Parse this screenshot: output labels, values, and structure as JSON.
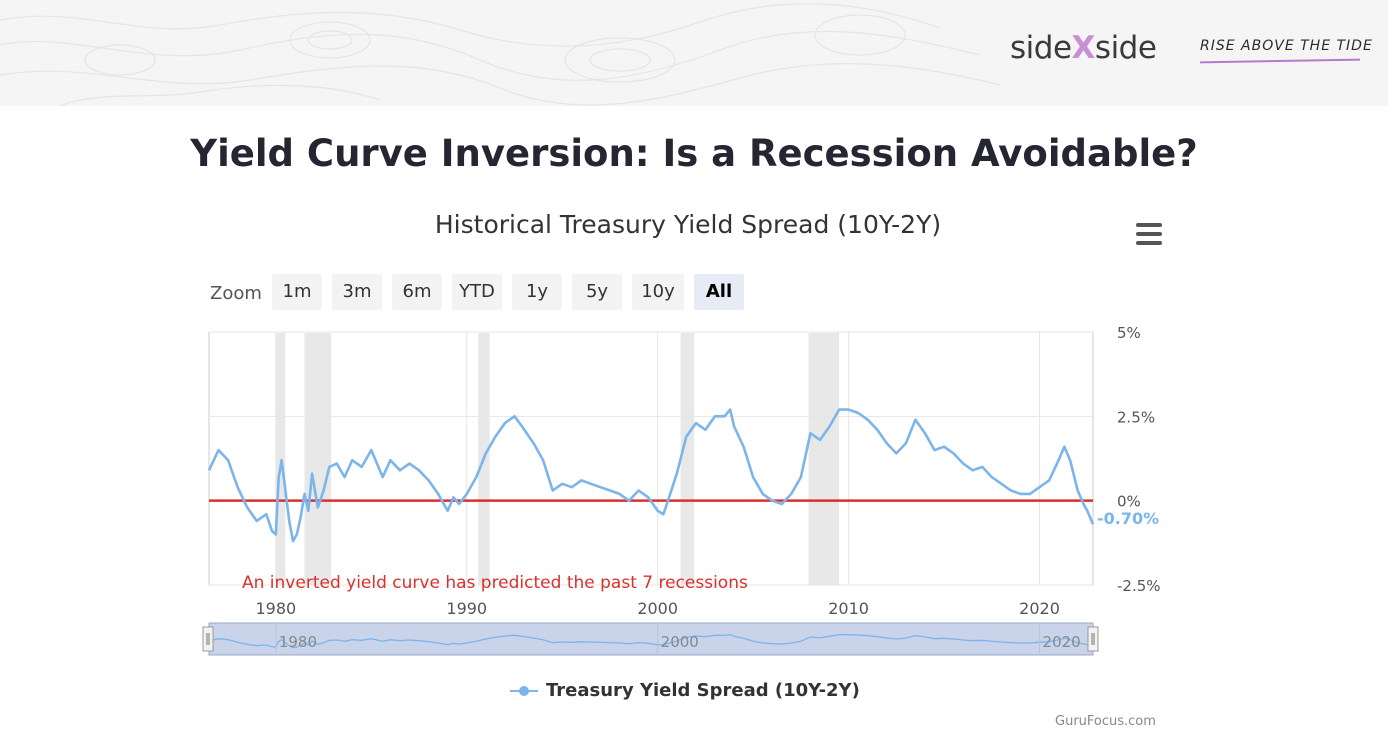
{
  "brand": {
    "left": "side",
    "x": "X",
    "right": "side",
    "tagline": "RISE ABOVE THE TIDE"
  },
  "headline": "Yield Curve Inversion: Is a Recession Avoidable?",
  "chart_title": "Historical Treasury Yield Spread (10Y-2Y)",
  "zoom": {
    "label": "Zoom",
    "buttons": [
      "1m",
      "3m",
      "6m",
      "YTD",
      "1y",
      "5y",
      "10y",
      "All"
    ],
    "active": "All"
  },
  "legend": "Treasury Yield Spread (10Y-2Y)",
  "credit": "GuruFocus.com",
  "colors": {
    "series": "#7cb5ec",
    "zero_line": "#d9302c",
    "annotation": "#d9302c",
    "recession_band": "#e8e8e8",
    "navigator": "#c9d3ea"
  },
  "chart_data": {
    "type": "line",
    "title": "Historical Treasury Yield Spread (10Y-2Y)",
    "xlabel": "",
    "ylabel": "",
    "x_ticks": [
      1980,
      1990,
      2000,
      2010,
      2020
    ],
    "y_ticks": [
      "5%",
      "2.5%",
      "0%",
      "-2.5%"
    ],
    "y_tick_values": [
      5,
      2.5,
      0,
      -2.5
    ],
    "xlim": [
      1976.5,
      2022.8
    ],
    "ylim": [
      -2.5,
      5
    ],
    "last_value_label": "-0.70%",
    "annotation": "An inverted yield curve has predicted the past 7 recessions",
    "navigator_ticks": [
      "1980",
      "2000",
      "2020"
    ],
    "recessions": [
      [
        1980.0,
        1980.5
      ],
      [
        1981.5,
        1982.9
      ],
      [
        1990.6,
        1991.2
      ],
      [
        2001.2,
        2001.9
      ],
      [
        2007.9,
        2009.5
      ]
    ],
    "series": [
      {
        "name": "Treasury Yield Spread (10Y-2Y)",
        "x": [
          1976.5,
          1977.0,
          1977.5,
          1978.0,
          1978.5,
          1979.0,
          1979.5,
          1979.8,
          1980.0,
          1980.15,
          1980.3,
          1980.5,
          1980.7,
          1980.9,
          1981.1,
          1981.3,
          1981.5,
          1981.7,
          1981.9,
          1982.2,
          1982.5,
          1982.8,
          1983.2,
          1983.6,
          1984.0,
          1984.5,
          1985.0,
          1985.3,
          1985.6,
          1986.0,
          1986.5,
          1987.0,
          1987.5,
          1988.0,
          1988.5,
          1989.0,
          1989.3,
          1989.6,
          1990.0,
          1990.5,
          1991.0,
          1991.5,
          1992.0,
          1992.5,
          1992.9,
          1993.5,
          1994.0,
          1994.5,
          1995.0,
          1995.5,
          1996.0,
          1996.5,
          1997.0,
          1997.5,
          1998.0,
          1998.5,
          1999.0,
          1999.5,
          2000.0,
          2000.3,
          2000.6,
          2001.0,
          2001.5,
          2002.0,
          2002.5,
          2003.0,
          2003.5,
          2003.8,
          2004.0,
          2004.5,
          2005.0,
          2005.5,
          2006.0,
          2006.5,
          2007.0,
          2007.5,
          2008.0,
          2008.5,
          2009.0,
          2009.5,
          2010.0,
          2010.5,
          2011.0,
          2011.5,
          2012.0,
          2012.5,
          2013.0,
          2013.5,
          2014.0,
          2014.5,
          2015.0,
          2015.5,
          2016.0,
          2016.5,
          2017.0,
          2017.5,
          2018.0,
          2018.5,
          2019.0,
          2019.5,
          2020.0,
          2020.5,
          2021.0,
          2021.3,
          2021.6,
          2022.0,
          2022.3,
          2022.5,
          2022.8
        ],
        "values": [
          0.9,
          1.5,
          1.2,
          0.4,
          -0.2,
          -0.6,
          -0.4,
          -0.9,
          -1.0,
          0.7,
          1.2,
          0.3,
          -0.6,
          -1.2,
          -1.0,
          -0.5,
          0.2,
          -0.3,
          0.8,
          -0.2,
          0.3,
          1.0,
          1.1,
          0.7,
          1.2,
          1.0,
          1.5,
          1.1,
          0.7,
          1.2,
          0.9,
          1.1,
          0.9,
          0.6,
          0.2,
          -0.3,
          0.1,
          -0.1,
          0.2,
          0.7,
          1.4,
          1.9,
          2.3,
          2.5,
          2.2,
          1.7,
          1.2,
          0.3,
          0.5,
          0.4,
          0.6,
          0.5,
          0.4,
          0.3,
          0.2,
          0.0,
          0.3,
          0.1,
          -0.3,
          -0.4,
          0.1,
          0.8,
          1.9,
          2.3,
          2.1,
          2.5,
          2.5,
          2.7,
          2.2,
          1.6,
          0.7,
          0.2,
          0.0,
          -0.1,
          0.2,
          0.7,
          2.0,
          1.8,
          2.2,
          2.7,
          2.7,
          2.6,
          2.4,
          2.1,
          1.7,
          1.4,
          1.7,
          2.4,
          2.0,
          1.5,
          1.6,
          1.4,
          1.1,
          0.9,
          1.0,
          0.7,
          0.5,
          0.3,
          0.2,
          0.2,
          0.4,
          0.6,
          1.2,
          1.6,
          1.2,
          0.3,
          -0.1,
          -0.3,
          -0.7
        ]
      }
    ]
  }
}
